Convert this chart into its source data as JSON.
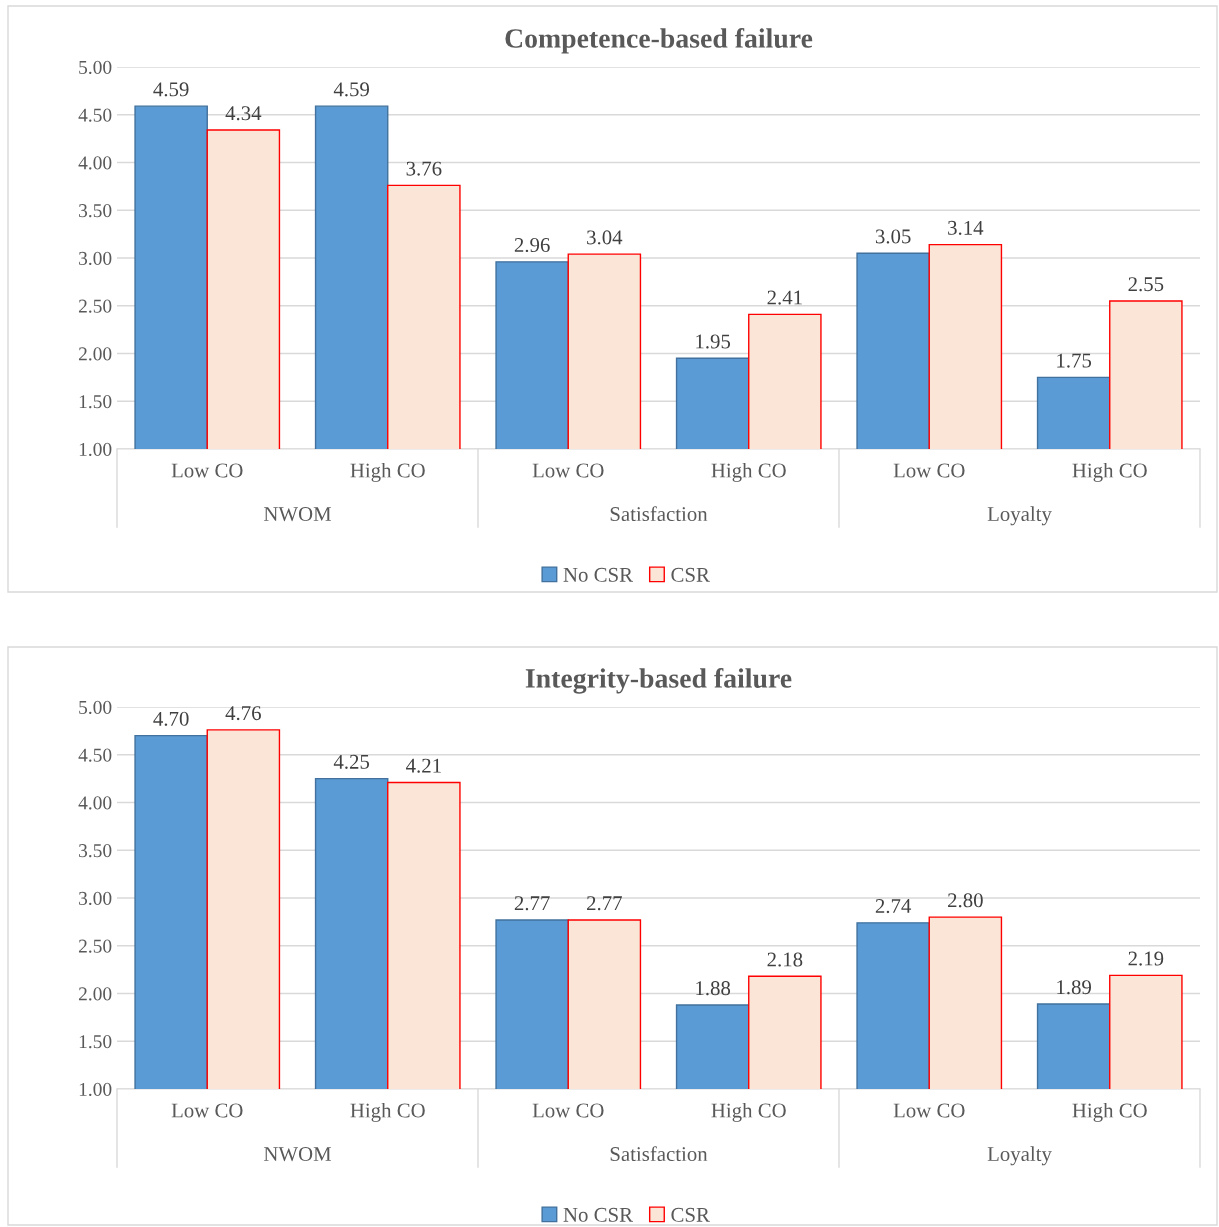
{
  "chart_data": [
    {
      "type": "bar",
      "title": "Competence-based failure",
      "categories": [
        "Low CO",
        "High CO",
        "Low CO",
        "High CO",
        "Low CO",
        "High CO"
      ],
      "annotations": [
        "NWOM",
        "Satisfaction",
        "Loyalty"
      ],
      "series": [
        {
          "name": "No CSR",
          "color": "#5b9bd5",
          "values": [
            4.59,
            4.59,
            2.96,
            1.95,
            3.05,
            1.75
          ]
        },
        {
          "name": "CSR",
          "color": "#fbe5d6",
          "values": [
            4.34,
            3.76,
            3.04,
            2.41,
            3.14,
            2.55
          ]
        }
      ],
      "ylim": [
        1,
        5
      ],
      "yticks": [
        {
          "value": 1,
          "label": "1.00"
        },
        {
          "value": 1.5,
          "label": "1.50"
        },
        {
          "value": 2,
          "label": "2.00"
        },
        {
          "value": 2.5,
          "label": "2.50"
        },
        {
          "value": 3,
          "label": "3.00"
        },
        {
          "value": 3.5,
          "label": "3.50"
        },
        {
          "value": 4,
          "label": "4.00"
        },
        {
          "value": 4.5,
          "label": "4.50"
        },
        {
          "value": 5,
          "label": "5.00"
        }
      ],
      "grid": "y",
      "legend": "bottom",
      "data_labels": true
    },
    {
      "type": "bar",
      "title": "Integrity-based failure",
      "categories": [
        "Low CO",
        "High CO",
        "Low CO",
        "High CO",
        "Low CO",
        "High CO"
      ],
      "annotations": [
        "NWOM",
        "Satisfaction",
        "Loyalty"
      ],
      "series": [
        {
          "name": "No CSR",
          "color": "#5b9bd5",
          "values": [
            4.7,
            4.25,
            2.77,
            1.88,
            2.74,
            1.89
          ],
          "value_labels": [
            "4.70",
            "4.25",
            "2.77",
            "1.88",
            "2.74",
            "1.89"
          ]
        },
        {
          "name": "CSR",
          "color": "#fbe5d6",
          "values": [
            4.76,
            4.21,
            2.77,
            2.18,
            2.8,
            2.19
          ],
          "value_labels": [
            "4.76",
            "4.21",
            "2.77",
            "2.18",
            "2.80",
            "2.19"
          ]
        }
      ],
      "ylim": [
        1,
        5
      ],
      "yticks": [
        {
          "value": 1,
          "label": "1.00"
        },
        {
          "value": 1.5,
          "label": "1.50"
        },
        {
          "value": 2,
          "label": "2.00"
        },
        {
          "value": 2.5,
          "label": "2.50"
        },
        {
          "value": 3,
          "label": "3.00"
        },
        {
          "value": 3.5,
          "label": "3.50"
        },
        {
          "value": 4,
          "label": "4.00"
        },
        {
          "value": 4.5,
          "label": "4.50"
        },
        {
          "value": 5,
          "label": "5.00"
        }
      ],
      "grid": "y",
      "legend": "bottom"
    }
  ]
}
